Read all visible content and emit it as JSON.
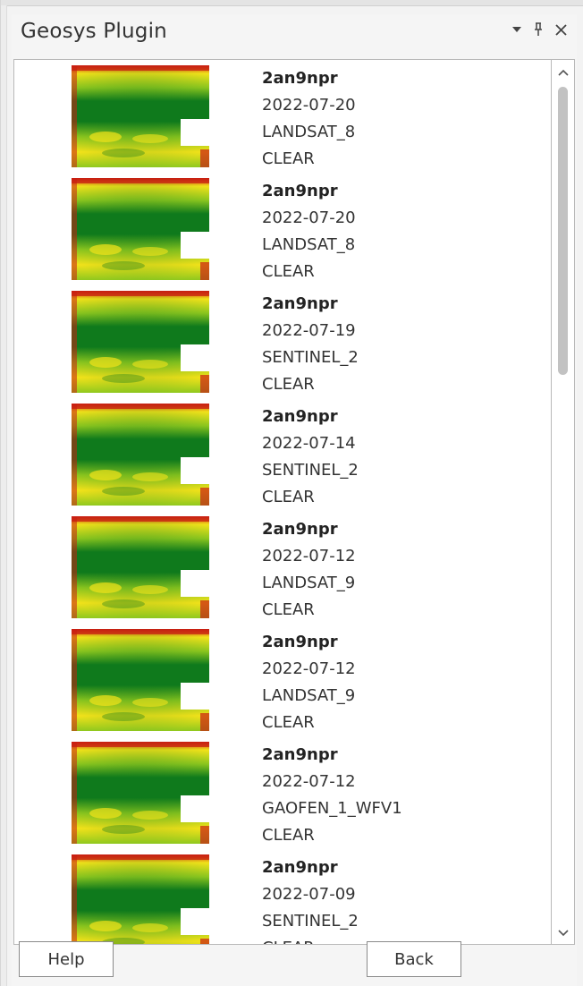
{
  "panel": {
    "title": "Geosys Plugin",
    "controls": [
      {
        "icon": "chevron-down-icon"
      },
      {
        "icon": "pin-icon"
      },
      {
        "icon": "close-icon"
      }
    ]
  },
  "scenes": [
    {
      "name": "2an9npr",
      "date": "2022-07-20",
      "sensor": "LANDSAT_8",
      "status": "CLEAR",
      "preview": "ndvi-map-thumbnail"
    },
    {
      "name": "2an9npr",
      "date": "2022-07-20",
      "sensor": "LANDSAT_8",
      "status": "CLEAR",
      "preview": "ndvi-map-thumbnail"
    },
    {
      "name": "2an9npr",
      "date": "2022-07-19",
      "sensor": "SENTINEL_2",
      "status": "CLEAR",
      "preview": "ndvi-map-thumbnail"
    },
    {
      "name": "2an9npr",
      "date": "2022-07-14",
      "sensor": "SENTINEL_2",
      "status": "CLEAR",
      "preview": "ndvi-map-thumbnail"
    },
    {
      "name": "2an9npr",
      "date": "2022-07-12",
      "sensor": "LANDSAT_9",
      "status": "CLEAR",
      "preview": "ndvi-map-thumbnail"
    },
    {
      "name": "2an9npr",
      "date": "2022-07-12",
      "sensor": "LANDSAT_9",
      "status": "CLEAR",
      "preview": "ndvi-map-thumbnail"
    },
    {
      "name": "2an9npr",
      "date": "2022-07-12",
      "sensor": "GAOFEN_1_WFV1",
      "status": "CLEAR",
      "preview": "ndvi-map-thumbnail"
    },
    {
      "name": "2an9npr",
      "date": "2022-07-09",
      "sensor": "SENTINEL_2",
      "status": "CLEAR",
      "preview": "ndvi-map-thumbnail"
    }
  ],
  "scrollbar": {
    "up_icon": "chevron-up-icon",
    "down_icon": "chevron-down-icon",
    "position": 0.0
  },
  "footer": {
    "help_label": "Help",
    "back_label": "Back"
  },
  "colors": {
    "ndvi_high": "#0f7a1c",
    "ndvi_mid": "#8fc81e",
    "ndvi_low": "#f2e21a",
    "ndvi_very_low": "#c81e12"
  }
}
